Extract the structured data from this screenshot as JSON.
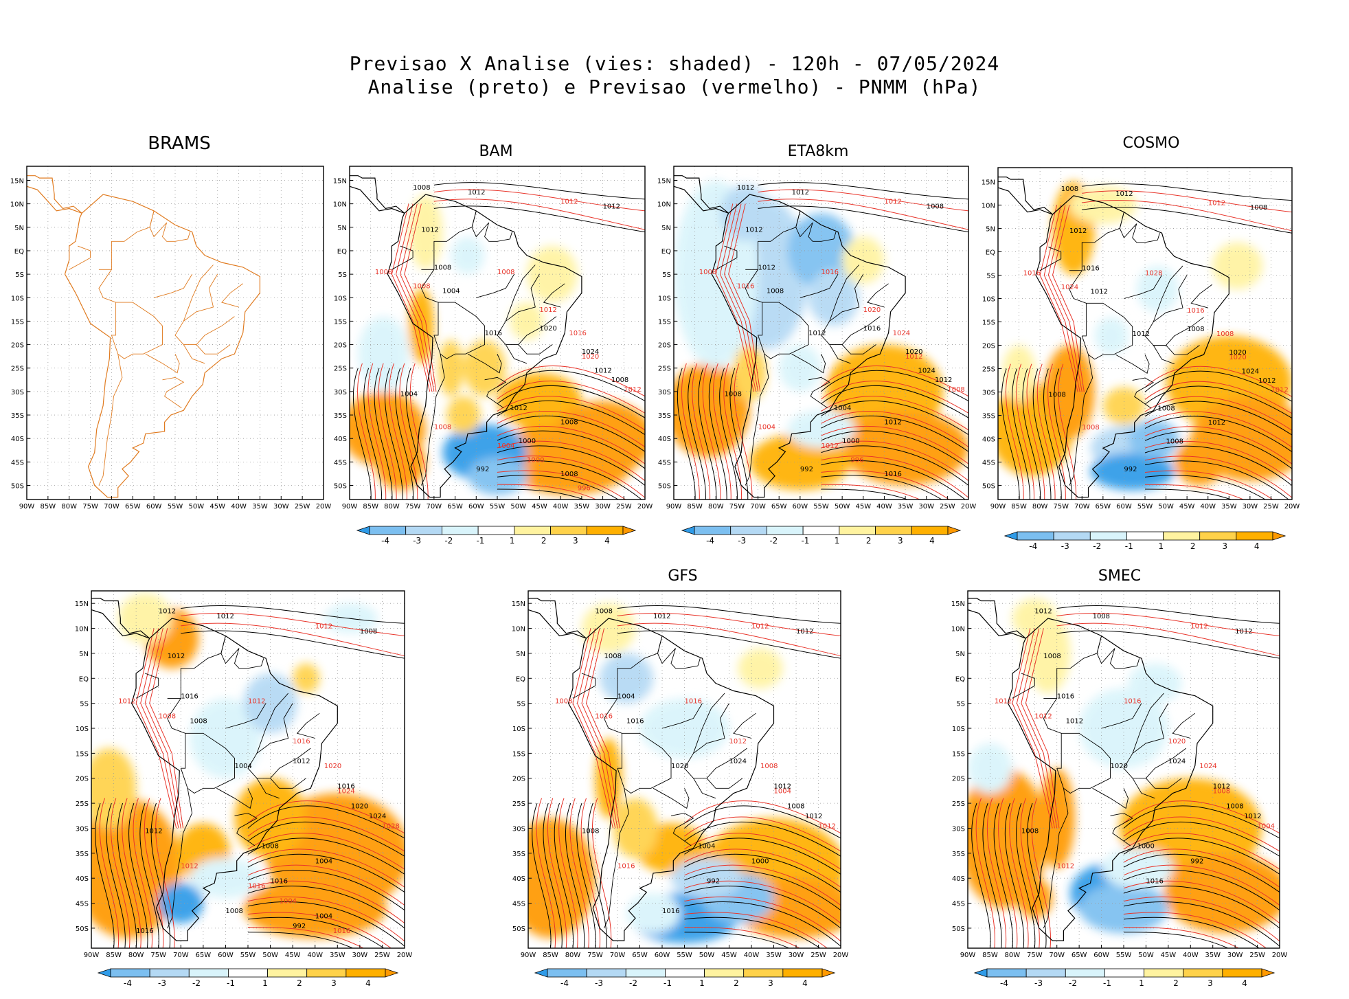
{
  "header": {
    "line1": "Previsao X Analise (vies: shaded) - 120h - 07/05/2024",
    "line2": "Analise (preto) e Previsao (vermelho) - PNMM (hPa)"
  },
  "axes": {
    "lat_labels": [
      "15N",
      "10N",
      "5N",
      "EQ",
      "5S",
      "10S",
      "15S",
      "20S",
      "25S",
      "30S",
      "35S",
      "40S",
      "45S",
      "50S"
    ],
    "lon_labels": [
      "90W",
      "85W",
      "80W",
      "75W",
      "70W",
      "65W",
      "60W",
      "55W",
      "50W",
      "45W",
      "40W",
      "35W",
      "30W",
      "25W",
      "20W"
    ]
  },
  "colorbar": {
    "labels": [
      "-4",
      "-3",
      "-2",
      "-1",
      "1",
      "2",
      "3",
      "4"
    ],
    "colors": [
      "#2f9be8",
      "#7cbff0",
      "#b4d9f4",
      "#d9f4fb",
      "#ffffff",
      "#fff3a0",
      "#ffd24a",
      "#ffb000",
      "#ff9900"
    ]
  },
  "colors": {
    "analysis": "#000000",
    "forecast": "#e8352b",
    "coast_brams": "#e07b20"
  },
  "panels": [
    {
      "id": "brams",
      "title": "BRAMS",
      "has_field": false,
      "black_labels": [],
      "red_labels": []
    },
    {
      "id": "bam",
      "title": "BAM",
      "has_field": true,
      "black_labels": [
        "1008",
        "1012",
        "1012",
        "1012",
        "1008",
        "1004",
        "1016",
        "1020",
        "1024",
        "1012",
        "1008",
        "1004",
        "1012",
        "1008",
        "1000",
        "992",
        "1008"
      ],
      "red_labels": [
        "1012",
        "1008",
        "1008",
        "1008",
        "1012",
        "1016",
        "1020",
        "1012",
        "1008",
        "1004",
        "1000",
        "996"
      ]
    },
    {
      "id": "eta8km",
      "title": "ETA8km",
      "has_field": true,
      "black_labels": [
        "1012",
        "1012",
        "1008",
        "1012",
        "1012",
        "1008",
        "1012",
        "1016",
        "1020",
        "1024",
        "1012",
        "1008",
        "1004",
        "1012",
        "1000",
        "992",
        "1016"
      ],
      "red_labels": [
        "1012",
        "1008",
        "1016",
        "1016",
        "1020",
        "1024",
        "1012",
        "1008",
        "1004",
        "1012",
        "996"
      ]
    },
    {
      "id": "cosmo",
      "title": "COSMO",
      "has_field": true,
      "black_labels": [
        "1008",
        "1012",
        "1008",
        "1012",
        "1016",
        "1012",
        "1012",
        "1008",
        "1020",
        "1024",
        "1012",
        "1008",
        "1008",
        "1012",
        "1008",
        "992"
      ],
      "red_labels": [
        "1012",
        "1016",
        "1024",
        "1028",
        "1016",
        "1008",
        "1020",
        "1012",
        "1008"
      ]
    },
    {
      "id": "p5",
      "title": "",
      "has_field": true,
      "black_labels": [
        "1012",
        "1012",
        "1008",
        "1012",
        "1016",
        "1008",
        "1004",
        "1012",
        "1016",
        "1020",
        "1024",
        "1012",
        "1008",
        "1004",
        "1016",
        "1008",
        "1004",
        "992",
        "1016"
      ],
      "red_labels": [
        "1012",
        "1012",
        "1008",
        "1012",
        "1016",
        "1020",
        "1024",
        "1028",
        "1012",
        "1016",
        "1004",
        "1016"
      ]
    },
    {
      "id": "gfs",
      "title": "GFS",
      "has_field": true,
      "black_labels": [
        "1008",
        "1012",
        "1012",
        "1008",
        "1004",
        "1016",
        "1020",
        "1024",
        "1012",
        "1008",
        "1012",
        "1008",
        "1004",
        "1000",
        "992",
        "1016"
      ],
      "red_labels": [
        "1012",
        "1008",
        "1016",
        "1016",
        "1012",
        "1008",
        "1004",
        "1012",
        "1016"
      ]
    },
    {
      "id": "smec",
      "title": "SMEC",
      "has_field": true,
      "black_labels": [
        "1012",
        "1008",
        "1012",
        "1008",
        "1016",
        "1012",
        "1020",
        "1024",
        "1012",
        "1008",
        "1012",
        "1008",
        "1000",
        "992",
        "1016"
      ],
      "red_labels": [
        "1012",
        "1012",
        "1012",
        "1016",
        "1020",
        "1024",
        "1008",
        "1004",
        "1012"
      ]
    }
  ]
}
